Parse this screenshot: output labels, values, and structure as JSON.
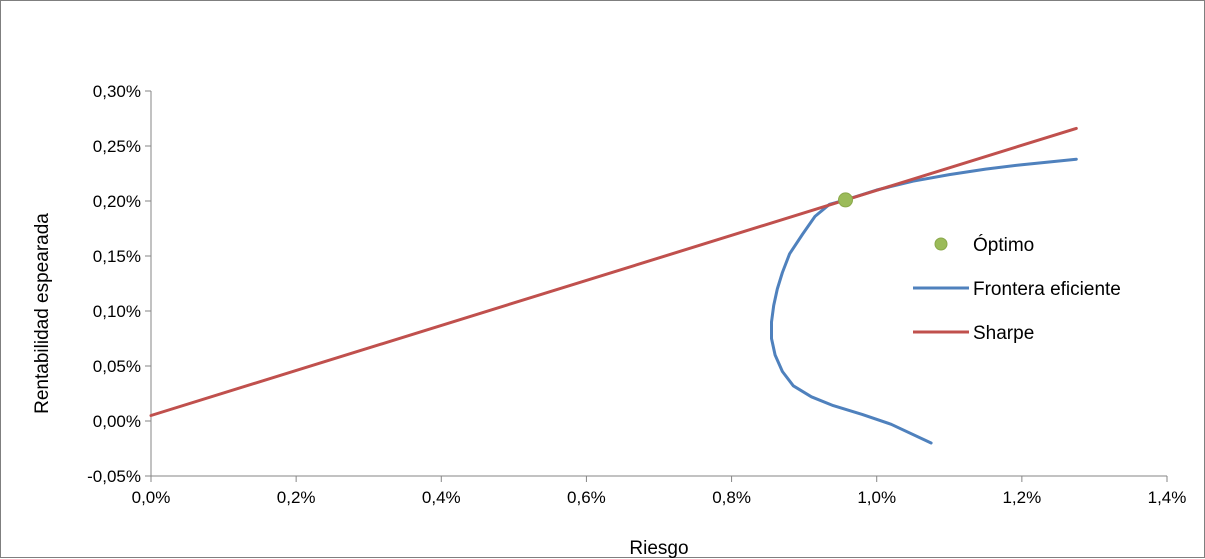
{
  "chart_data": {
    "type": "line",
    "xlabel": "Riesgo",
    "ylabel": "Rentabilidad  espearada",
    "xlim": [
      0,
      1.4
    ],
    "ylim": [
      -0.05,
      0.3
    ],
    "x_ticks": [
      "0,0%",
      "0,2%",
      "0,4%",
      "0,6%",
      "0,8%",
      "1,0%",
      "1,2%",
      "1,4%"
    ],
    "x_tick_values": [
      0,
      0.2,
      0.4,
      0.6,
      0.8,
      1.0,
      1.2,
      1.4
    ],
    "y_ticks": [
      "-0,05%",
      "0,00%",
      "0,05%",
      "0,10%",
      "0,15%",
      "0,20%",
      "0,25%",
      "0,30%"
    ],
    "y_tick_values": [
      -0.05,
      0.0,
      0.05,
      0.1,
      0.15,
      0.2,
      0.25,
      0.3
    ],
    "grid": false,
    "legend_position": "right",
    "series": [
      {
        "name": "Óptimo",
        "kind": "scatter",
        "color": "#9bbb59",
        "points": [
          [
            0.957,
            0.201
          ]
        ]
      },
      {
        "name": "Frontera eficiente",
        "kind": "line",
        "color": "#4f81bd",
        "points": [
          [
            1.075,
            -0.02
          ],
          [
            1.02,
            -0.003
          ],
          [
            0.98,
            0.006
          ],
          [
            0.94,
            0.014
          ],
          [
            0.91,
            0.022
          ],
          [
            0.885,
            0.032
          ],
          [
            0.87,
            0.045
          ],
          [
            0.86,
            0.06
          ],
          [
            0.855,
            0.075
          ],
          [
            0.855,
            0.09
          ],
          [
            0.858,
            0.105
          ],
          [
            0.863,
            0.12
          ],
          [
            0.87,
            0.135
          ],
          [
            0.88,
            0.152
          ],
          [
            0.898,
            0.17
          ],
          [
            0.915,
            0.186
          ],
          [
            0.935,
            0.197
          ],
          [
            0.957,
            0.201
          ],
          [
            1.0,
            0.21
          ],
          [
            1.05,
            0.218
          ],
          [
            1.1,
            0.224
          ],
          [
            1.15,
            0.229
          ],
          [
            1.2,
            0.233
          ],
          [
            1.275,
            0.238
          ]
        ]
      },
      {
        "name": "Sharpe",
        "kind": "line",
        "color": "#c0504d",
        "points": [
          [
            0.0,
            0.005
          ],
          [
            1.275,
            0.266
          ]
        ]
      }
    ]
  }
}
